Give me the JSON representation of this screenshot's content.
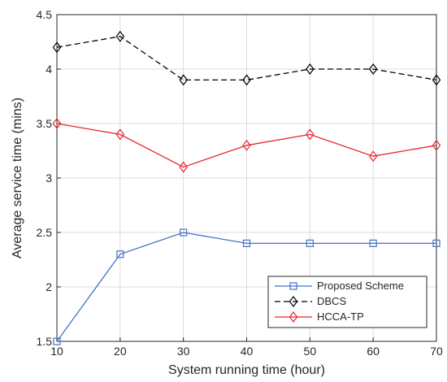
{
  "chart_data": {
    "type": "line",
    "title": "",
    "xlabel": "System running time (hour)",
    "ylabel": "Average service time (mins)",
    "xlim": [
      10,
      70
    ],
    "ylim": [
      1.5,
      4.5
    ],
    "x_ticks": [
      10,
      20,
      30,
      40,
      50,
      60,
      70
    ],
    "y_ticks": [
      1.5,
      2,
      2.5,
      3,
      3.5,
      4,
      4.5
    ],
    "x_tick_labels": [
      "10",
      "20",
      "30",
      "40",
      "50",
      "60",
      "70"
    ],
    "y_tick_labels": [
      "1.5",
      "2",
      "2.5",
      "3",
      "3.5",
      "4",
      "4.5"
    ],
    "grid": true,
    "legend_position": "bottom-right",
    "x": [
      10,
      20,
      30,
      40,
      50,
      60,
      70
    ],
    "series": [
      {
        "name": "Proposed Scheme",
        "values": [
          1.5,
          2.3,
          2.5,
          2.4,
          2.4,
          2.4,
          2.4
        ],
        "color": "#4472c4",
        "marker": "square",
        "dash": "solid"
      },
      {
        "name": "DBCS",
        "values": [
          4.2,
          4.3,
          3.9,
          3.9,
          4.0,
          4.0,
          3.9
        ],
        "color": "#000000",
        "marker": "diamond",
        "dash": "dashed"
      },
      {
        "name": "HCCA-TP",
        "values": [
          3.5,
          3.4,
          3.1,
          3.3,
          3.4,
          3.2,
          3.3
        ],
        "color": "#e8262a",
        "marker": "diamond",
        "dash": "solid"
      }
    ]
  }
}
